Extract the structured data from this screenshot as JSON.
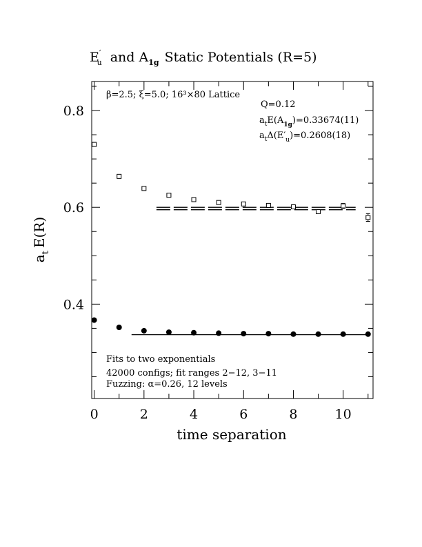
{
  "chart_data": {
    "type": "scatter",
    "title": {
      "part1_main": "E",
      "part1_prime": "′",
      "part1_sub": "u",
      "part2_main": "and A",
      "part2_sub": "1g",
      "part3": "Static Potentials (R=5)"
    },
    "xlabel": "time separation",
    "ylabel": {
      "main": "a",
      "sub": "t",
      "rest": "E(R)"
    },
    "xlim": [
      -0.1,
      11.2
    ],
    "ylim": [
      0.205,
      0.86
    ],
    "x_ticks": [
      "0",
      "2",
      "4",
      "6",
      "8",
      "10"
    ],
    "y_ticks": [
      "0.4",
      "0.6",
      "0.8"
    ],
    "annotations": {
      "lattice": "β=2.5; ξ=5.0; 16³×80 Lattice",
      "q": "Q=0.12",
      "energy_a1g": {
        "pre": "a",
        "sub1": "t",
        "mid": "E(A",
        "sub2": "1g",
        "post": ")=0.33674(11)"
      },
      "gap_eu": {
        "pre": "a",
        "sub1": "t",
        "mid": "Δ(E′",
        "sub2": "u",
        "post": ")=0.2608(18)"
      },
      "fit_line1": "Fits to two exponentials",
      "fit_line2": "42000 configs; fit ranges 2−12, 3−11",
      "fit_line3": "Fuzzing: α=0.26, 12 levels"
    },
    "series": [
      {
        "marker": "open-square",
        "x": [
          0,
          1,
          2,
          3,
          4,
          5,
          6,
          7,
          8,
          9,
          10,
          11
        ],
        "y": [
          0.73,
          0.664,
          0.639,
          0.625,
          0.616,
          0.61,
          0.607,
          0.604,
          0.601,
          0.591,
          0.603,
          0.579
        ],
        "err": [
          0.001,
          0.001,
          0.001,
          0.001,
          0.001,
          0.002,
          0.002,
          0.003,
          0.003,
          0.004,
          0.005,
          0.008
        ]
      },
      {
        "marker": "filled-circle",
        "x": [
          0,
          1,
          2,
          3,
          4,
          5,
          6,
          7,
          8,
          9,
          10,
          11
        ],
        "y": [
          0.367,
          0.352,
          0.345,
          0.342,
          0.341,
          0.34,
          0.339,
          0.339,
          0.338,
          0.338,
          0.338,
          0.338
        ],
        "err": [
          0,
          0,
          0,
          0,
          0,
          0,
          0,
          0,
          0,
          0,
          0,
          0
        ]
      }
    ],
    "fits": [
      {
        "x_range": [
          2.5,
          10.5
        ],
        "y_center": 0.5975,
        "y_halfwidth": 0.0025,
        "style": "double"
      },
      {
        "x_range": [
          1.5,
          11.0
        ],
        "y_center": 0.3368,
        "y_halfwidth": 0.0,
        "style": "single"
      }
    ],
    "grid": false,
    "legend": "none"
  }
}
